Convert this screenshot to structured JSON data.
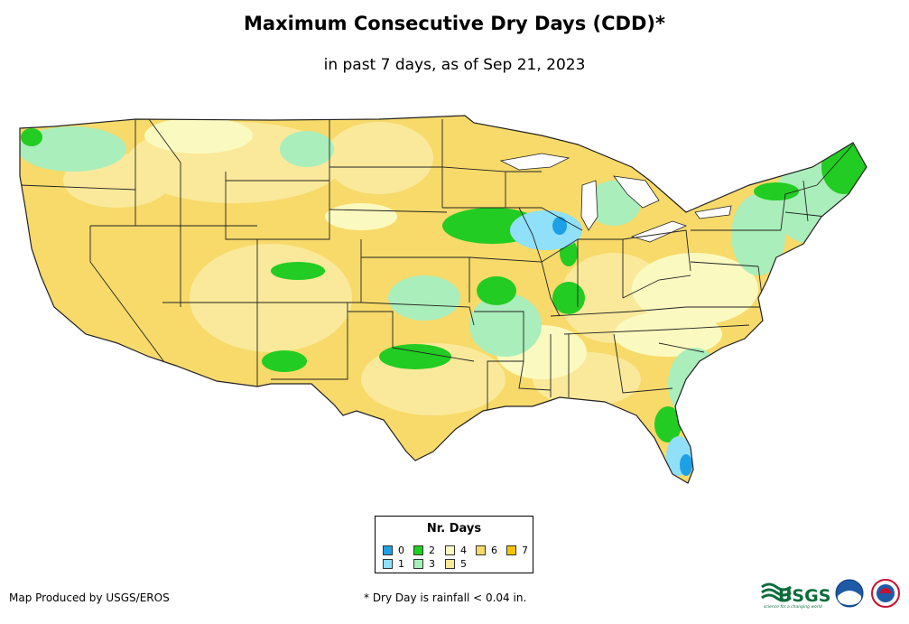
{
  "title": "Maximum Consecutive Dry Days (CDD)*",
  "subtitle": "in past 7 days, as of Sep 21, 2023",
  "legend": {
    "title": "Nr. Days",
    "items": [
      {
        "label": "0",
        "color": "#1ea0e6"
      },
      {
        "label": "1",
        "color": "#8fe0f8"
      },
      {
        "label": "2",
        "color": "#22cc22"
      },
      {
        "label": "3",
        "color": "#aaeebb"
      },
      {
        "label": "4",
        "color": "#fafac0"
      },
      {
        "label": "5",
        "color": "#fae99a"
      },
      {
        "label": "6",
        "color": "#f7da6a"
      },
      {
        "label": "7",
        "color": "#f5c400"
      }
    ]
  },
  "credit": "Map Produced by USGS/EROS",
  "footnote": "* Dry Day is rainfall < 0.04 in.",
  "logos": {
    "usgs_text": "USGS",
    "usgs_tagline": "science for a changing world"
  },
  "colors": {
    "state_border": "#222222",
    "background": "#ffffff"
  }
}
